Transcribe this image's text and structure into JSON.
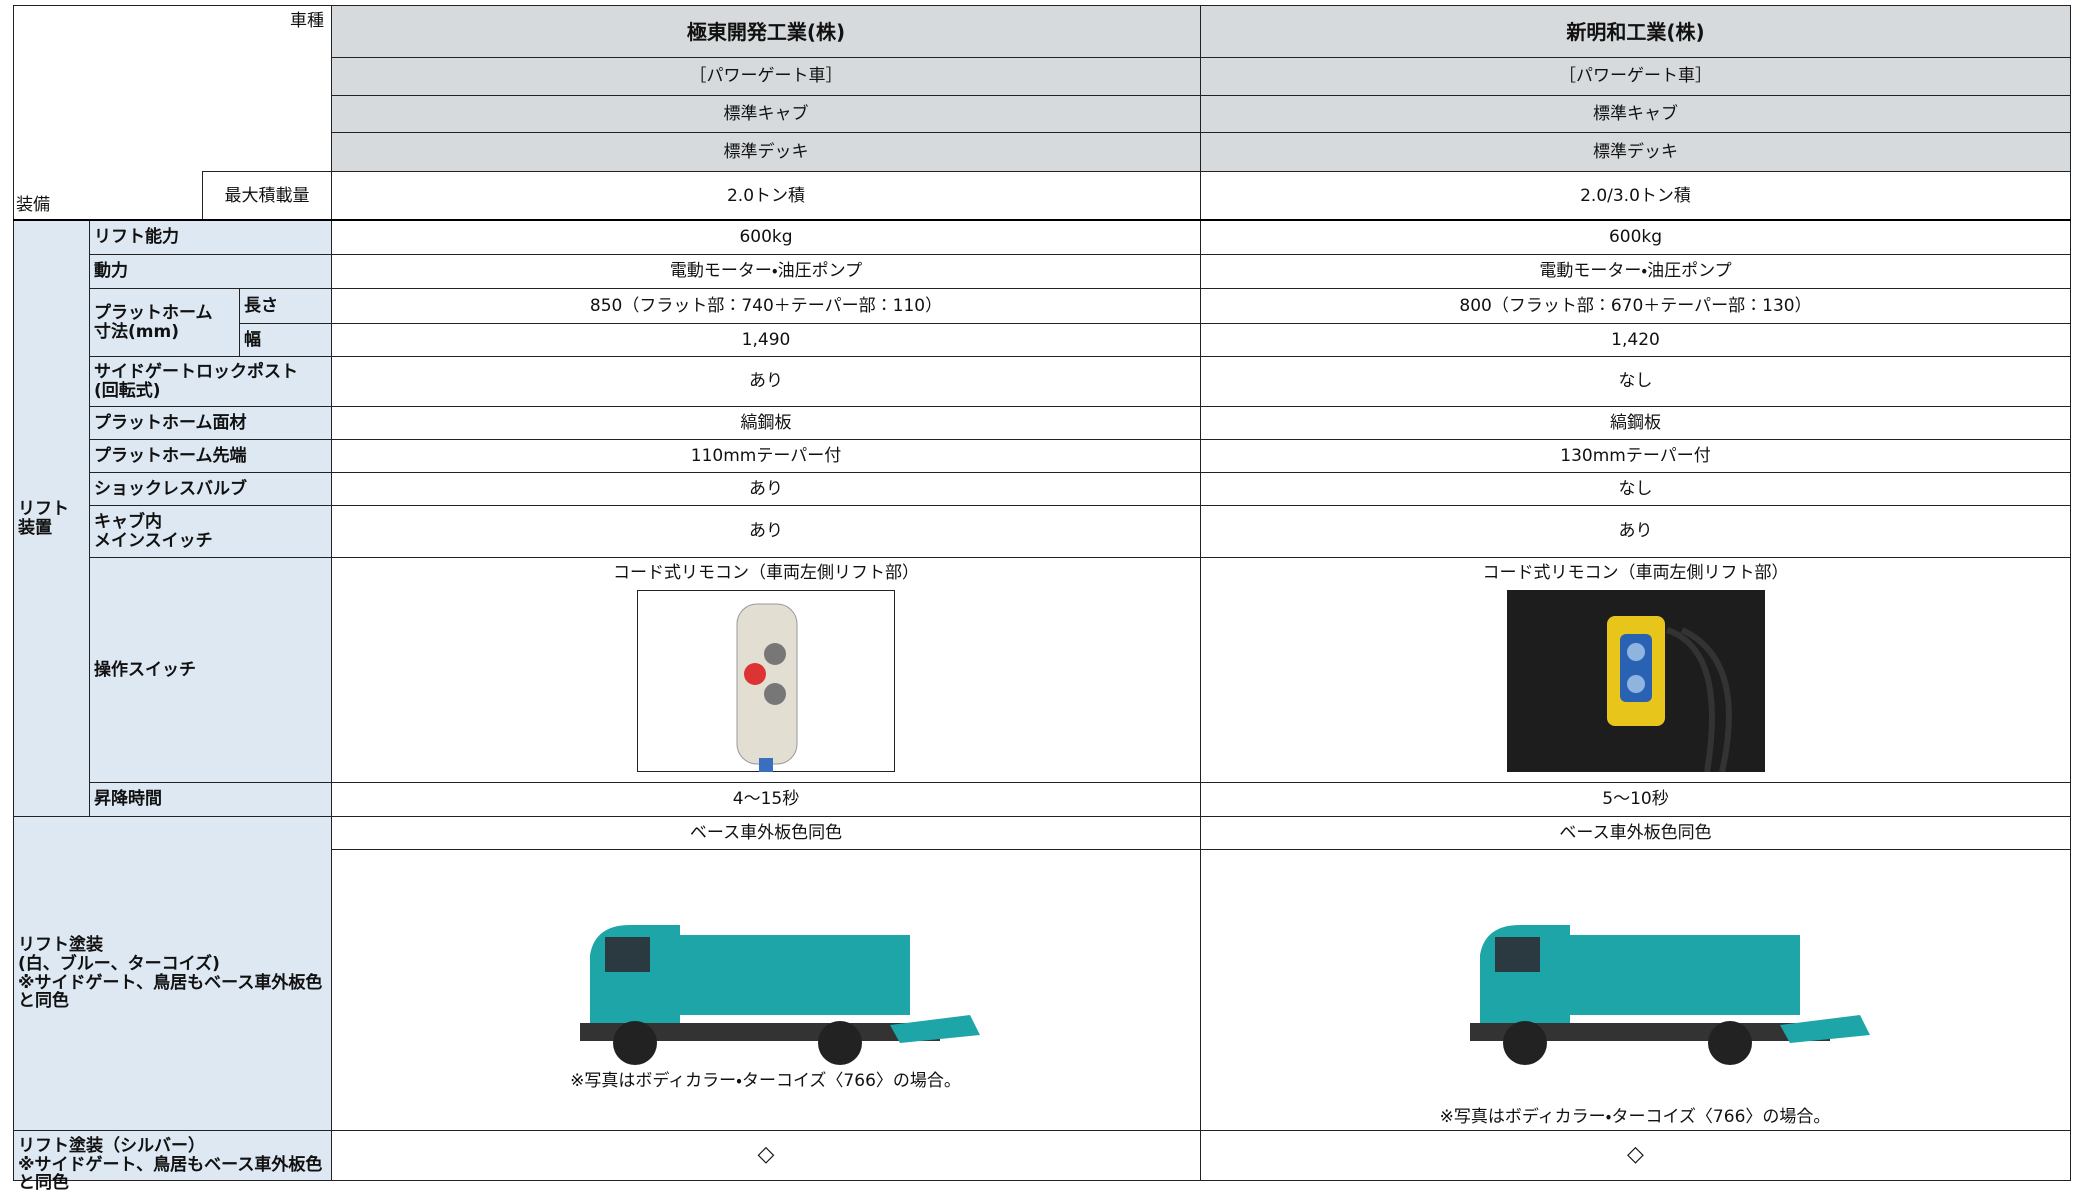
{
  "header": {
    "vehicle_type_label": "車種",
    "equipment_label": "装備",
    "max_load_label": "最大積載量"
  },
  "columns": [
    {
      "maker": "極東開発工業(株)",
      "type": "［パワーゲート車］",
      "cab": "標準キャブ",
      "deck": "標準デッキ",
      "max_load": "2.0トン積"
    },
    {
      "maker": "新明和工業(株)",
      "type": "［パワーゲート車］",
      "cab": "標準キャブ",
      "deck": "標準デッキ",
      "max_load": "2.0/3.0トン積"
    }
  ],
  "lift_section_label": "リフト\n装置",
  "rows": [
    {
      "label": "リフト能力",
      "values": [
        "600kg",
        "600kg"
      ]
    },
    {
      "label": "動力",
      "values": [
        "電動モーター・油圧ポンプ",
        "電動モーター・油圧ポンプ"
      ]
    },
    {
      "label": "プラットホーム\n寸法(mm)",
      "sublabel": "長さ",
      "values": [
        "850（フラット部：740＋テーパー部：110）",
        "800（フラット部：670＋テーパー部：130）"
      ]
    },
    {
      "sublabel": "幅",
      "values": [
        "1,490",
        "1,420"
      ]
    },
    {
      "label": "サイドゲートロックポスト\n(回転式)",
      "values": [
        "あり",
        "なし"
      ]
    },
    {
      "label": "プラットホーム面材",
      "values": [
        "縞鋼板",
        "縞鋼板"
      ]
    },
    {
      "label": "プラットホーム先端",
      "values": [
        "110mmテーパー付",
        "130mmテーパー付"
      ]
    },
    {
      "label": "ショックレスバルブ",
      "values": [
        "あり",
        "なし"
      ]
    },
    {
      "label": "キャブ内\nメインスイッチ",
      "values": [
        "あり",
        "あり"
      ]
    },
    {
      "label": "操作スイッチ",
      "values": [
        "コード式リモコン（車両左側リフト部）",
        "コード式リモコン（車両左側リフト部）"
      ]
    },
    {
      "label": "昇降時間",
      "values": [
        "4〜15秒",
        "5〜10秒"
      ]
    }
  ],
  "paint": {
    "label": "リフト塗装\n(白、ブルー、ターコイズ)\n※サイドゲート、鳥居もベース車外板色と同色",
    "values": [
      "ベース車外板色同色",
      "ベース車外板色同色"
    ],
    "captions": [
      "※写真はボディカラー・ターコイズ〈766〉の場合。",
      "※写真はボディカラー・ターコイズ〈766〉の場合。"
    ]
  },
  "silver": {
    "label": "リフト塗装（シルバー）\n※サイドゲート、鳥居もベース車外板色と同色",
    "values": [
      "◇",
      "◇"
    ]
  }
}
